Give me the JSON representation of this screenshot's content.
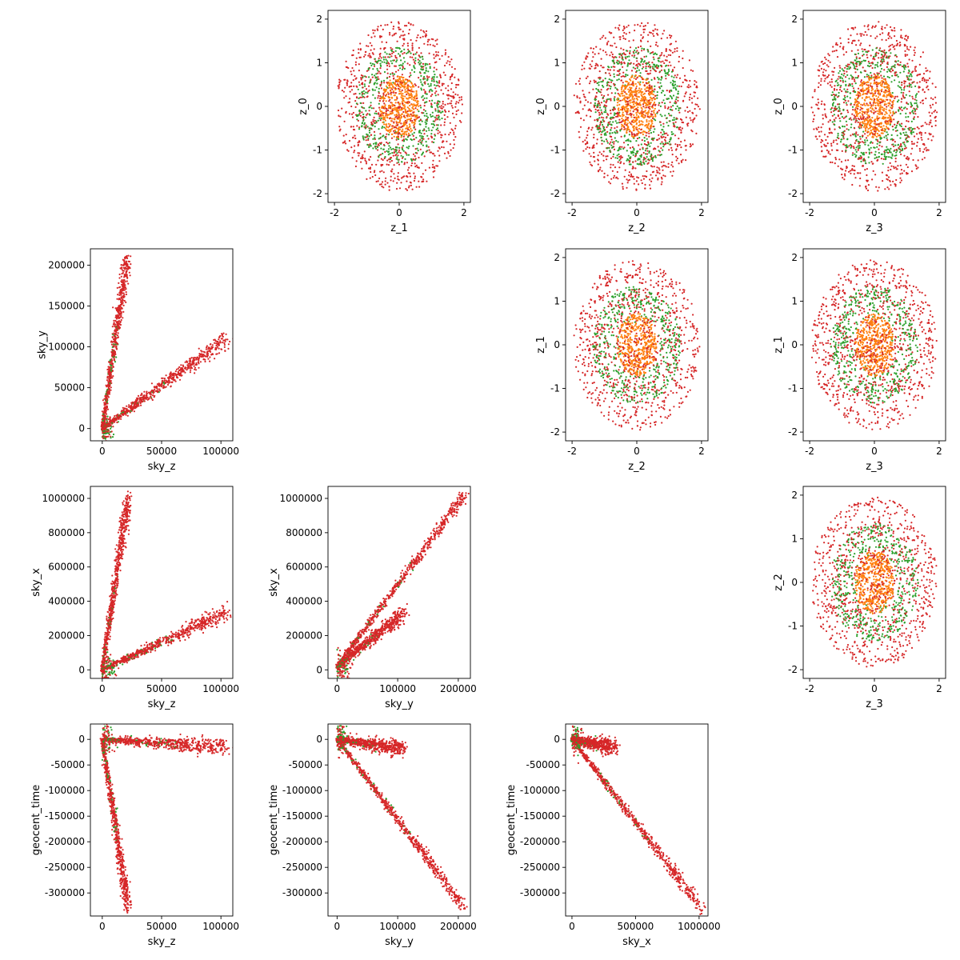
{
  "figure": {
    "layout": "corner-plot",
    "colors": {
      "red": "#d62728",
      "green": "#2ca02c",
      "orange": "#ff7f0e",
      "axis": "#000000"
    }
  },
  "chart_data": [
    {
      "type": "scatter",
      "pattern": "disk",
      "xlabel": "z_1",
      "ylabel": "z_0",
      "xlim": [
        -2.2,
        2.2
      ],
      "ylim": [
        -2.2,
        2.2
      ],
      "xticks": [
        "-2",
        "0",
        "2"
      ],
      "yticks": [
        "-2",
        "-1",
        "0",
        "1",
        "2"
      ],
      "xtickvals": [
        -2,
        0,
        2
      ],
      "ytickvals": [
        -2,
        -1,
        0,
        1,
        2
      ]
    },
    {
      "type": "scatter",
      "pattern": "disk",
      "xlabel": "z_2",
      "ylabel": "z_0",
      "xlim": [
        -2.2,
        2.2
      ],
      "ylim": [
        -2.2,
        2.2
      ],
      "xticks": [
        "-2",
        "0",
        "2"
      ],
      "yticks": [
        "-2",
        "-1",
        "0",
        "1",
        "2"
      ],
      "xtickvals": [
        -2,
        0,
        2
      ],
      "ytickvals": [
        -2,
        -1,
        0,
        1,
        2
      ]
    },
    {
      "type": "scatter",
      "pattern": "disk",
      "xlabel": "z_3",
      "ylabel": "z_0",
      "xlim": [
        -2.2,
        2.2
      ],
      "ylim": [
        -2.2,
        2.2
      ],
      "xticks": [
        "-2",
        "0",
        "2"
      ],
      "yticks": [
        "-2",
        "-1",
        "0",
        "1",
        "2"
      ],
      "xtickvals": [
        -2,
        0,
        2
      ],
      "ytickvals": [
        -2,
        -1,
        0,
        1,
        2
      ]
    },
    {
      "type": "scatter",
      "pattern": "vshape",
      "xlabel": "sky_z",
      "ylabel": "sky_y",
      "xlim": [
        -10000,
        110000
      ],
      "ylim": [
        -15000,
        220000
      ],
      "xticks": [
        "0",
        "50000",
        "100000"
      ],
      "yticks": [
        "0",
        "50000",
        "100000",
        "150000",
        "200000"
      ],
      "xtickvals": [
        0,
        50000,
        100000
      ],
      "ytickvals": [
        0,
        50000,
        100000,
        150000,
        200000
      ],
      "arms": [
        {
          "x0": 0,
          "y0": 0,
          "x1": 21000,
          "y1": 210000
        },
        {
          "x0": 0,
          "y0": 0,
          "x1": 104000,
          "y1": 110000
        }
      ]
    },
    {
      "type": "scatter",
      "pattern": "disk",
      "xlabel": "z_2",
      "ylabel": "z_1",
      "xlim": [
        -2.2,
        2.2
      ],
      "ylim": [
        -2.2,
        2.2
      ],
      "xticks": [
        "-2",
        "0",
        "2"
      ],
      "yticks": [
        "-2",
        "-1",
        "0",
        "1",
        "2"
      ],
      "xtickvals": [
        -2,
        0,
        2
      ],
      "ytickvals": [
        -2,
        -1,
        0,
        1,
        2
      ]
    },
    {
      "type": "scatter",
      "pattern": "disk",
      "xlabel": "z_3",
      "ylabel": "z_1",
      "xlim": [
        -2.2,
        2.2
      ],
      "ylim": [
        -2.2,
        2.2
      ],
      "xticks": [
        "-2",
        "0",
        "2"
      ],
      "yticks": [
        "-2",
        "-1",
        "0",
        "1",
        "2"
      ],
      "xtickvals": [
        -2,
        0,
        2
      ],
      "ytickvals": [
        -2,
        -1,
        0,
        1,
        2
      ]
    },
    {
      "type": "scatter",
      "pattern": "vshape",
      "xlabel": "sky_z",
      "ylabel": "sky_x",
      "xlim": [
        -10000,
        110000
      ],
      "ylim": [
        -50000,
        1070000
      ],
      "xticks": [
        "0",
        "50000",
        "100000"
      ],
      "yticks": [
        "0",
        "200000",
        "400000",
        "600000",
        "800000",
        "1000000"
      ],
      "xtickvals": [
        0,
        50000,
        100000
      ],
      "ytickvals": [
        0,
        200000,
        400000,
        600000,
        800000,
        1000000
      ],
      "arms": [
        {
          "x0": 0,
          "y0": 0,
          "x1": 22000,
          "y1": 1020000
        },
        {
          "x0": 0,
          "y0": 0,
          "x1": 104000,
          "y1": 335000
        }
      ]
    },
    {
      "type": "scatter",
      "pattern": "vshape",
      "xlabel": "sky_y",
      "ylabel": "sky_x",
      "xlim": [
        -15000,
        220000
      ],
      "ylim": [
        -50000,
        1070000
      ],
      "xticks": [
        "0",
        "100000",
        "200000"
      ],
      "yticks": [
        "0",
        "200000",
        "400000",
        "600000",
        "800000",
        "1000000"
      ],
      "xtickvals": [
        0,
        100000,
        200000
      ],
      "ytickvals": [
        0,
        200000,
        400000,
        600000,
        800000,
        1000000
      ],
      "arms": [
        {
          "x0": 0,
          "y0": 20000,
          "x1": 210000,
          "y1": 1020000
        },
        {
          "x0": 0,
          "y0": 20000,
          "x1": 110000,
          "y1": 330000
        }
      ]
    },
    {
      "type": "scatter",
      "pattern": "disk",
      "xlabel": "z_3",
      "ylabel": "z_2",
      "xlim": [
        -2.2,
        2.2
      ],
      "ylim": [
        -2.2,
        2.2
      ],
      "xticks": [
        "-2",
        "0",
        "2"
      ],
      "yticks": [
        "-2",
        "-1",
        "0",
        "1",
        "2"
      ],
      "xtickvals": [
        -2,
        0,
        2
      ],
      "ytickvals": [
        -2,
        -1,
        0,
        1,
        2
      ]
    },
    {
      "type": "scatter",
      "pattern": "vshape",
      "xlabel": "sky_z",
      "ylabel": "geocent_time",
      "xlim": [
        -10000,
        110000
      ],
      "ylim": [
        -345000,
        30000
      ],
      "xticks": [
        "0",
        "50000",
        "100000"
      ],
      "yticks": [
        "0",
        "-50000",
        "-100000",
        "-150000",
        "-200000",
        "-250000",
        "-300000"
      ],
      "xtickvals": [
        0,
        50000,
        100000
      ],
      "ytickvals": [
        0,
        -50000,
        -100000,
        -150000,
        -200000,
        -250000,
        -300000
      ],
      "arms": [
        {
          "x0": 0,
          "y0": 0,
          "x1": 22000,
          "y1": -330000
        },
        {
          "x0": 0,
          "y0": 0,
          "x1": 104000,
          "y1": -15000
        }
      ]
    },
    {
      "type": "scatter",
      "pattern": "vshape",
      "xlabel": "sky_y",
      "ylabel": "geocent_time",
      "xlim": [
        -15000,
        220000
      ],
      "ylim": [
        -345000,
        30000
      ],
      "xticks": [
        "0",
        "100000",
        "200000"
      ],
      "yticks": [
        "0",
        "-50000",
        "-100000",
        "-150000",
        "-200000",
        "-250000",
        "-300000"
      ],
      "xtickvals": [
        0,
        100000,
        200000
      ],
      "ytickvals": [
        0,
        -50000,
        -100000,
        -150000,
        -200000,
        -250000,
        -300000
      ],
      "arms": [
        {
          "x0": 0,
          "y0": 0,
          "x1": 210000,
          "y1": -330000
        },
        {
          "x0": 0,
          "y0": 0,
          "x1": 110000,
          "y1": -18000
        }
      ]
    },
    {
      "type": "scatter",
      "pattern": "vshape",
      "xlabel": "sky_x",
      "ylabel": "geocent_time",
      "xlim": [
        -50000,
        1070000
      ],
      "ylim": [
        -345000,
        30000
      ],
      "xticks": [
        "0",
        "500000",
        "1000000"
      ],
      "yticks": [
        "0",
        "-50000",
        "-100000",
        "-150000",
        "-200000",
        "-250000",
        "-300000"
      ],
      "xtickvals": [
        0,
        500000,
        1000000
      ],
      "ytickvals": [
        0,
        -50000,
        -100000,
        -150000,
        -200000,
        -250000,
        -300000
      ],
      "arms": [
        {
          "x0": 0,
          "y0": 0,
          "x1": 1020000,
          "y1": -330000
        },
        {
          "x0": 0,
          "y0": 0,
          "x1": 330000,
          "y1": -15000
        }
      ]
    }
  ]
}
